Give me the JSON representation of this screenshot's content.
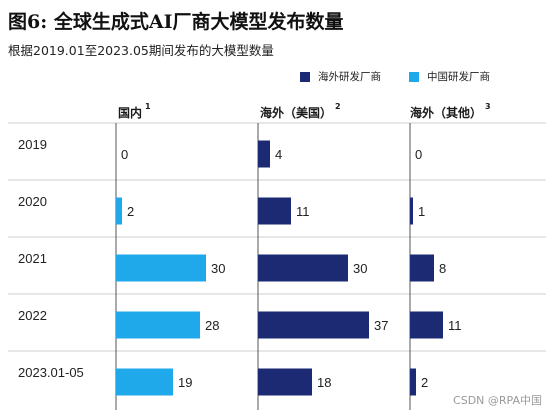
{
  "title": "图6: 全球生成式AI厂商大模型发布数量",
  "subtitle": "根据2019.01至2023.05期间发布的大模型数量",
  "legend": [
    {
      "label": "海外研发厂商",
      "color": "#1b2a73"
    },
    {
      "label": "中国研发厂商",
      "color": "#1fa8ea"
    }
  ],
  "watermark": "CSDN @RPA中国",
  "chart_data": {
    "type": "bar",
    "orientation": "horizontal",
    "title": "图6: 全球生成式AI厂商大模型发布数量",
    "subtitle": "根据2019.01至2023.05期间发布的大模型数量",
    "categories": [
      "2019",
      "2020",
      "2021",
      "2022",
      "2023.01-05"
    ],
    "panels": [
      {
        "header": "国内",
        "note": "1",
        "series": "中国研发厂商",
        "color": "#1fa8ea",
        "values": [
          0,
          2,
          30,
          28,
          19
        ]
      },
      {
        "header": "海外（美国）",
        "note": "2",
        "series": "海外研发厂商",
        "color": "#1b2a73",
        "values": [
          4,
          11,
          30,
          37,
          18
        ]
      },
      {
        "header": "海外（其他）",
        "note": "3",
        "series": "海外研发厂商",
        "color": "#1b2a73",
        "values": [
          0,
          1,
          8,
          11,
          2
        ]
      }
    ],
    "value_scale_max": 37,
    "legend_position": "top-right",
    "grid": false
  }
}
